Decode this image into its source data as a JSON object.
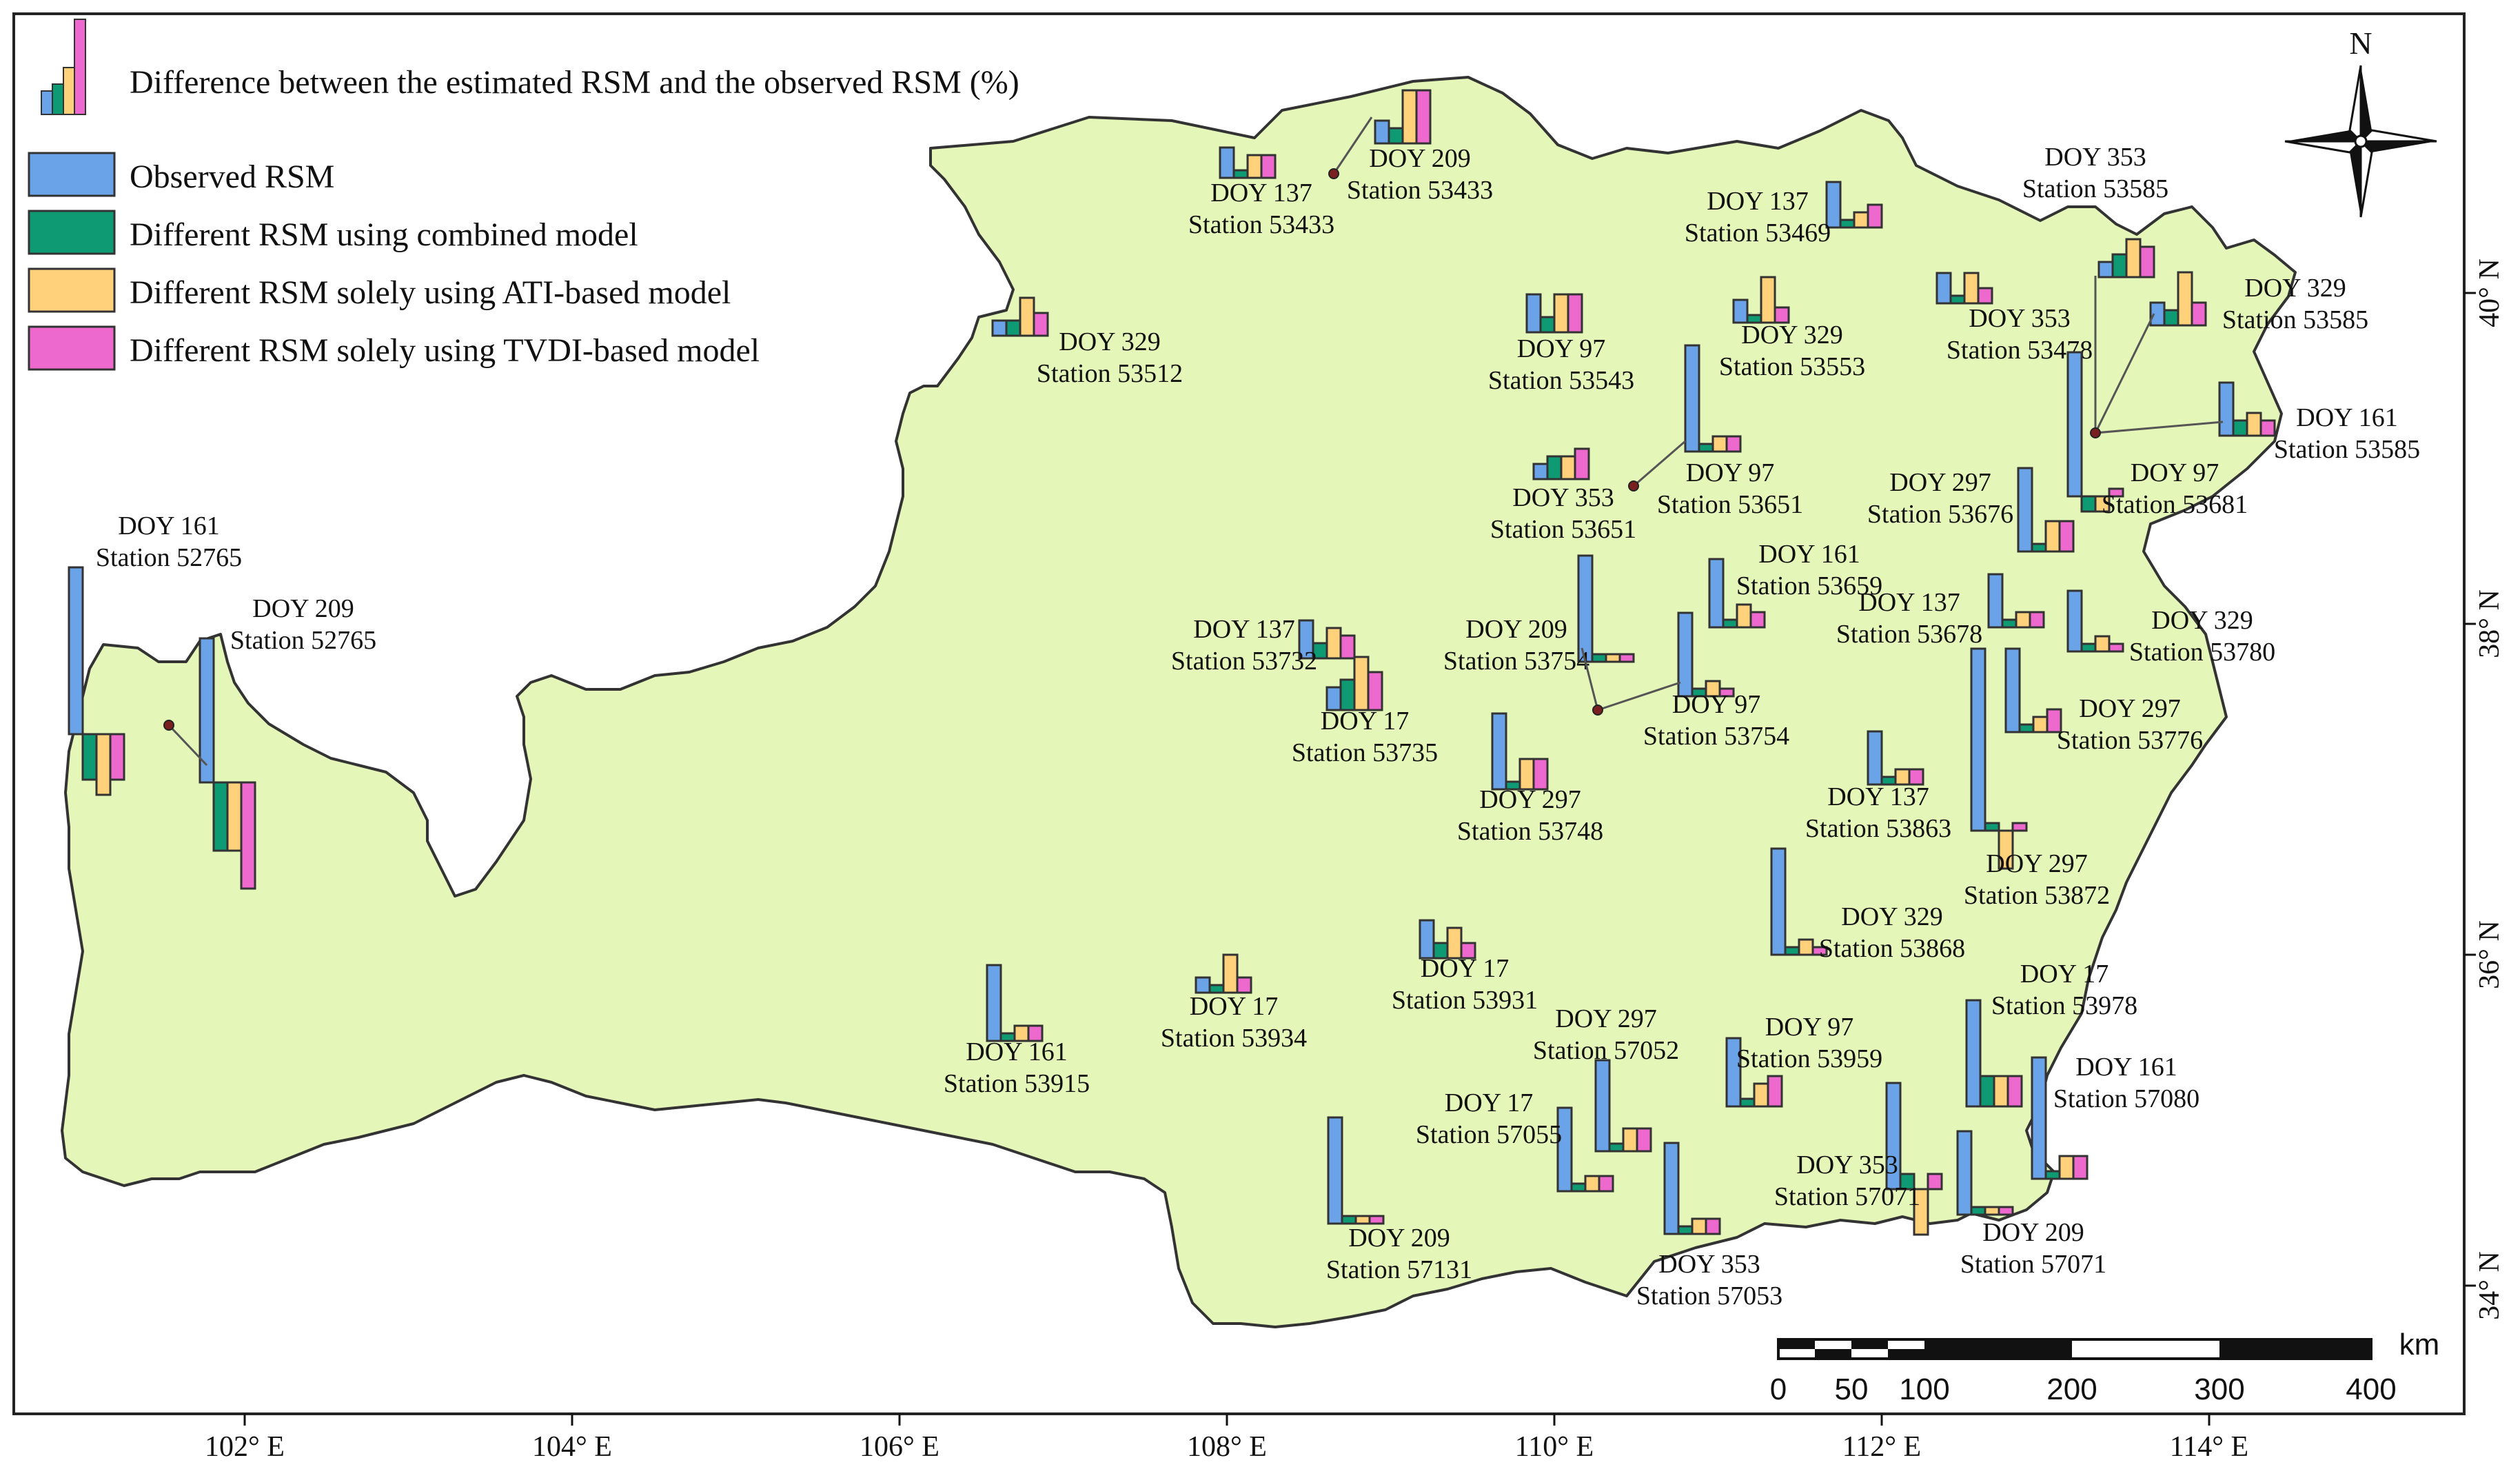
{
  "legend": {
    "difference_label": "Difference between the estimated RSM and the observed RSM (%)",
    "items": [
      {
        "label": "Observed RSM",
        "color": "#6aa3e8"
      },
      {
        "label": "Different RSM using combined model",
        "color": "#0e9a73"
      },
      {
        "label": "Different RSM solely using ATI-based model",
        "color": "#ffd17a"
      },
      {
        "label": "Different RSM solely using TVDI-based model",
        "color": "#ee69cd"
      }
    ]
  },
  "north_label": "N",
  "map_fill_color": "#e5f6b9",
  "longitude_ticks": [
    "102° E",
    "104° E",
    "106° E",
    "108° E",
    "110° E",
    "112° E",
    "114° E"
  ],
  "latitude_ticks": [
    "34° N",
    "36° N",
    "38° N",
    "40° N"
  ],
  "scale_bar": {
    "unit": "km",
    "labels": [
      "0",
      "50",
      "100",
      "200",
      "300",
      "400"
    ]
  },
  "stations": [
    {
      "doy": "DOY 161",
      "station": "Station 52765",
      "bars": [
        22,
        -6,
        -8,
        -6
      ]
    },
    {
      "doy": "DOY 209",
      "station": "Station 52765",
      "bars": [
        19,
        -9,
        -9,
        -14
      ]
    },
    {
      "doy": "DOY 137",
      "station": "Station 53433",
      "bars": [
        4,
        1,
        3,
        3
      ]
    },
    {
      "doy": "DOY 209",
      "station": "Station 53433",
      "bars": [
        3,
        2,
        7,
        7
      ]
    },
    {
      "doy": "DOY 329",
      "station": "Station 53512",
      "bars": [
        2,
        2,
        5,
        3
      ]
    },
    {
      "doy": "DOY 97",
      "station": "Station 53543",
      "bars": [
        5,
        2,
        5,
        5
      ]
    },
    {
      "doy": "DOY 353",
      "station": "Station 53651",
      "bars": [
        2,
        3,
        3,
        4
      ]
    },
    {
      "doy": "DOY 97",
      "station": "Station 53651",
      "bars": [
        14,
        1,
        2,
        2
      ]
    },
    {
      "doy": "DOY 137",
      "station": "Station 53469",
      "bars": [
        6,
        1,
        2,
        3
      ]
    },
    {
      "doy": "DOY 329",
      "station": "Station 53553",
      "bars": [
        3,
        1,
        6,
        2
      ]
    },
    {
      "doy": "DOY 353",
      "station": "Station 53478",
      "bars": [
        4,
        1,
        4,
        2
      ]
    },
    {
      "doy": "DOY 353",
      "station": "Station 53585",
      "bars": [
        2,
        3,
        5,
        4
      ]
    },
    {
      "doy": "DOY 329",
      "station": "Station 53585",
      "bars": [
        3,
        2,
        7,
        3
      ]
    },
    {
      "doy": "DOY 161",
      "station": "Station 53585",
      "bars": [
        7,
        2,
        3,
        2
      ]
    },
    {
      "doy": "DOY 97",
      "station": "Station 53681",
      "bars": [
        19,
        -2,
        -2,
        1
      ]
    },
    {
      "doy": "DOY 297",
      "station": "Station 53676",
      "bars": [
        11,
        1,
        4,
        4
      ]
    },
    {
      "doy": "DOY 161",
      "station": "Station 53659",
      "bars": [
        9,
        1,
        3,
        2
      ]
    },
    {
      "doy": "DOY 137",
      "station": "Station 53678",
      "bars": [
        7,
        1,
        2,
        2
      ]
    },
    {
      "doy": "DOY 329",
      "station": "Station 53780",
      "bars": [
        8,
        1,
        2,
        1
      ]
    },
    {
      "doy": "DOY 297",
      "station": "Station 53776",
      "bars": [
        11,
        1,
        2,
        3
      ]
    },
    {
      "doy": "DOY 137",
      "station": "Station 53732",
      "bars": [
        5,
        2,
        4,
        3
      ]
    },
    {
      "doy": "DOY 17",
      "station": "Station 53735",
      "bars": [
        3,
        4,
        7,
        5
      ]
    },
    {
      "doy": "DOY 209",
      "station": "Station 53754",
      "bars": [
        14,
        1,
        1,
        1
      ]
    },
    {
      "doy": "DOY 97",
      "station": "Station 53754",
      "bars": [
        11,
        1,
        2,
        1
      ]
    },
    {
      "doy": "DOY 297",
      "station": "Station 53748",
      "bars": [
        10,
        1,
        4,
        4
      ]
    },
    {
      "doy": "DOY 137",
      "station": "Station 53863",
      "bars": [
        7,
        1,
        2,
        2
      ]
    },
    {
      "doy": "DOY 297",
      "station": "Station 53872",
      "bars": [
        24,
        1,
        -5,
        1
      ]
    },
    {
      "doy": "DOY 329",
      "station": "Station 53868",
      "bars": [
        14,
        1,
        2,
        1
      ]
    },
    {
      "doy": "DOY 161",
      "station": "Station 53915",
      "bars": [
        10,
        1,
        2,
        2
      ]
    },
    {
      "doy": "DOY 17",
      "station": "Station 53934",
      "bars": [
        2,
        1,
        5,
        2
      ]
    },
    {
      "doy": "DOY 17",
      "station": "Station 53931",
      "bars": [
        5,
        2,
        4,
        2
      ]
    },
    {
      "doy": "DOY 297",
      "station": "Station 57052",
      "bars": [
        12,
        1,
        3,
        3
      ]
    },
    {
      "doy": "DOY 17",
      "station": "Station 57055",
      "bars": [
        11,
        1,
        2,
        2
      ]
    },
    {
      "doy": "DOY 97",
      "station": "Station 53959",
      "bars": [
        9,
        1,
        3,
        4
      ]
    },
    {
      "doy": "DOY 17",
      "station": "Station 53978",
      "bars": [
        14,
        4,
        4,
        4
      ]
    },
    {
      "doy": "DOY 161",
      "station": "Station 57080",
      "bars": [
        16,
        1,
        3,
        3
      ]
    },
    {
      "doy": "DOY 353",
      "station": "Station 57071",
      "bars": [
        14,
        2,
        -6,
        2
      ]
    },
    {
      "doy": "DOY 209",
      "station": "Station 57071",
      "bars": [
        11,
        1,
        1,
        1
      ]
    },
    {
      "doy": "DOY 209",
      "station": "Station 57131",
      "bars": [
        14,
        1,
        1,
        1
      ]
    },
    {
      "doy": "DOY 353",
      "station": "Station 57053",
      "bars": [
        12,
        1,
        2,
        2
      ]
    }
  ]
}
